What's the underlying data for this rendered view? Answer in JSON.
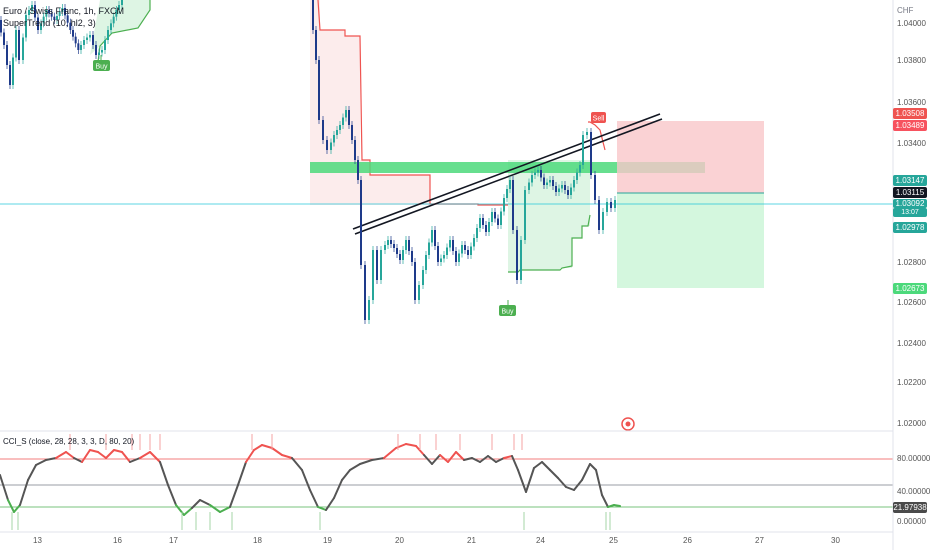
{
  "header": {
    "symbol": "Euro / Swiss Franc, 1h, FXCM",
    "indicator": "SuperTrend (10, hl2, 3)",
    "currency": "CHF",
    "osc_label": "CCI_S (close, 28, 28, 3, 3, D, 80, 20)"
  },
  "price_axis": {
    "ticks": [
      "1.04000",
      "1.03800",
      "1.03600",
      "1.03400",
      "1.02800",
      "1.02600",
      "1.02400",
      "1.02200",
      "1.02000"
    ]
  },
  "price_tags": {
    "stop": "1.03508",
    "high": "1.03489",
    "current": "1.03147",
    "open": "1.03115",
    "last": "1.03092",
    "countdown": "13:07",
    "entry": "1.02978",
    "target": "1.02673"
  },
  "osc_axis": {
    "ticks": [
      "80.00000",
      "40.00000",
      "0.00000"
    ],
    "value": "21.97938"
  },
  "time_axis": {
    "ticks": [
      "13",
      "16",
      "17",
      "18",
      "19",
      "20",
      "21",
      "24",
      "25",
      "26",
      "27",
      "30"
    ]
  },
  "signals": {
    "buy1": "Buy",
    "buy2": "Buy",
    "sell": "Sell"
  },
  "colors": {
    "up": "#26a69a",
    "down": "#1e3a8a",
    "bull_zone": "#4cd97b",
    "bear_zone": "#ef5350",
    "cci_line": "#555555",
    "cci_over": "#ef5350",
    "cci_under": "#4caf50",
    "ref_line": "#26c6da"
  }
}
